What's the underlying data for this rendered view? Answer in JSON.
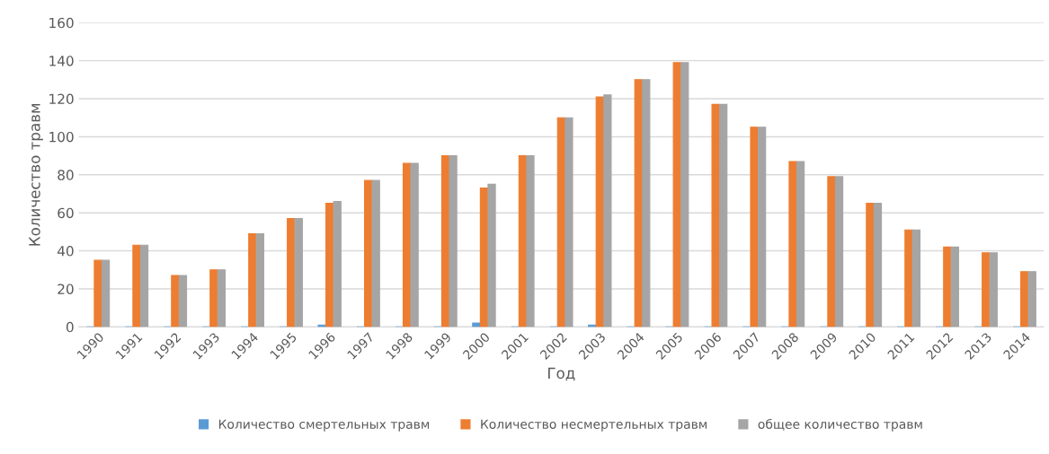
{
  "chart_data": {
    "type": "bar",
    "xlabel": "Год",
    "ylabel": "Количество травм",
    "categories": [
      "1990",
      "1991",
      "1992",
      "1993",
      "1994",
      "1995",
      "1996",
      "1997",
      "1998",
      "1999",
      "2000",
      "2001",
      "2002",
      "2003",
      "2004",
      "2005",
      "2006",
      "2007",
      "2008",
      "2009",
      "2010",
      "2011",
      "2012",
      "2013",
      "2014"
    ],
    "series": [
      {
        "name": "Количество смертельных травм",
        "color": "#5b9bd5",
        "values": [
          0,
          0,
          0,
          0,
          0,
          0,
          1,
          0,
          0,
          0,
          2,
          0,
          0,
          1,
          0,
          0,
          0,
          0,
          0,
          0,
          0,
          0,
          0,
          0,
          0
        ]
      },
      {
        "name": "Количество несмертельных травм",
        "color": "#ed7d31",
        "values": [
          35,
          43,
          27,
          30,
          49,
          57,
          65,
          77,
          86,
          90,
          73,
          90,
          110,
          121,
          130,
          139,
          117,
          105,
          87,
          79,
          65,
          51,
          42,
          39,
          29
        ]
      },
      {
        "name": "общее количество травм",
        "color": "#a5a5a5",
        "values": [
          35,
          43,
          27,
          30,
          49,
          57,
          66,
          77,
          86,
          90,
          75,
          90,
          110,
          122,
          130,
          139,
          117,
          105,
          87,
          79,
          65,
          51,
          42,
          39,
          29
        ]
      }
    ],
    "ylim": [
      0,
      160
    ],
    "yticks": [
      0,
      20,
      40,
      60,
      80,
      100,
      120,
      140,
      160
    ],
    "grid": "y",
    "legend": "bottom"
  }
}
